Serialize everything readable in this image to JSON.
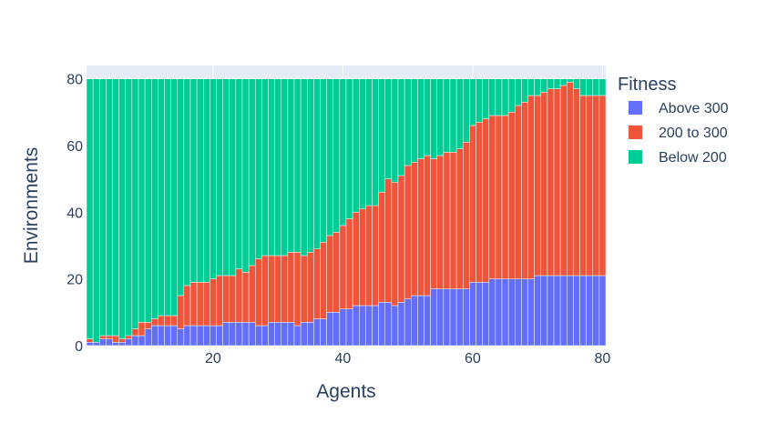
{
  "chart_data": {
    "type": "bar",
    "barmode": "stack",
    "xlabel": "Agents",
    "ylabel": "Environments",
    "xlim": [
      0.5,
      80.5
    ],
    "ylim": [
      0,
      84
    ],
    "x_ticks": [
      20,
      40,
      60,
      80
    ],
    "y_ticks": [
      0,
      20,
      40,
      60,
      80
    ],
    "legend_title": "Fitness",
    "legend_position": "right",
    "grid": true,
    "background": "#e5ecf6",
    "x": [
      1,
      2,
      3,
      4,
      5,
      6,
      7,
      8,
      9,
      10,
      11,
      12,
      13,
      14,
      15,
      16,
      17,
      18,
      19,
      20,
      21,
      22,
      23,
      24,
      25,
      26,
      27,
      28,
      29,
      30,
      31,
      32,
      33,
      34,
      35,
      36,
      37,
      38,
      39,
      40,
      41,
      42,
      43,
      44,
      45,
      46,
      47,
      48,
      49,
      50,
      51,
      52,
      53,
      54,
      55,
      56,
      57,
      58,
      59,
      60,
      61,
      62,
      63,
      64,
      65,
      66,
      67,
      68,
      69,
      70,
      71,
      72,
      73,
      74,
      75,
      76,
      77,
      78,
      79,
      80
    ],
    "series": [
      {
        "name": "Above 300",
        "color": "#636efa",
        "values": [
          1,
          1,
          2,
          2,
          1,
          1,
          2,
          3,
          3,
          5,
          6,
          6,
          6,
          6,
          5,
          6,
          6,
          6,
          6,
          6,
          6,
          7,
          7,
          7,
          7,
          7,
          6,
          6,
          7,
          7,
          7,
          7,
          6,
          7,
          7,
          8,
          8,
          10,
          10,
          11,
          11,
          12,
          12,
          12,
          12,
          13,
          13,
          12,
          13,
          14,
          15,
          15,
          15,
          17,
          17,
          17,
          17,
          17,
          17,
          19,
          19,
          19,
          20,
          20,
          20,
          20,
          20,
          20,
          20,
          21,
          21,
          21,
          21,
          21,
          21,
          21,
          21,
          21,
          21,
          21
        ]
      },
      {
        "name": "200 to 300",
        "color": "#ef553b",
        "values": [
          1,
          0,
          1,
          1,
          2,
          1,
          1,
          2,
          4,
          2,
          2,
          3,
          3,
          3,
          10,
          12,
          13,
          13,
          13,
          14,
          15,
          14,
          14,
          16,
          15,
          17,
          20,
          21,
          20,
          20,
          20,
          21,
          22,
          20,
          21,
          21,
          23,
          23,
          24,
          25,
          27,
          28,
          29,
          30,
          30,
          33,
          37,
          37,
          38,
          40,
          40,
          41,
          42,
          39,
          40,
          41,
          41,
          42,
          44,
          47,
          48,
          49,
          49,
          49,
          49,
          50,
          52,
          53,
          55,
          54,
          55,
          56,
          56,
          57,
          58,
          56,
          54,
          54,
          54,
          54
        ]
      },
      {
        "name": "Below 200",
        "color": "#00cc96",
        "values": [
          78,
          79,
          77,
          77,
          77,
          78,
          77,
          75,
          73,
          73,
          72,
          71,
          71,
          71,
          65,
          62,
          61,
          61,
          61,
          60,
          59,
          59,
          59,
          57,
          58,
          56,
          54,
          53,
          53,
          53,
          53,
          52,
          52,
          53,
          52,
          51,
          49,
          47,
          46,
          44,
          42,
          40,
          39,
          38,
          38,
          34,
          30,
          31,
          29,
          26,
          25,
          24,
          23,
          24,
          23,
          22,
          22,
          21,
          19,
          14,
          13,
          12,
          11,
          11,
          11,
          10,
          8,
          7,
          5,
          5,
          4,
          3,
          3,
          2,
          1,
          3,
          5,
          5,
          5,
          5
        ]
      }
    ]
  }
}
